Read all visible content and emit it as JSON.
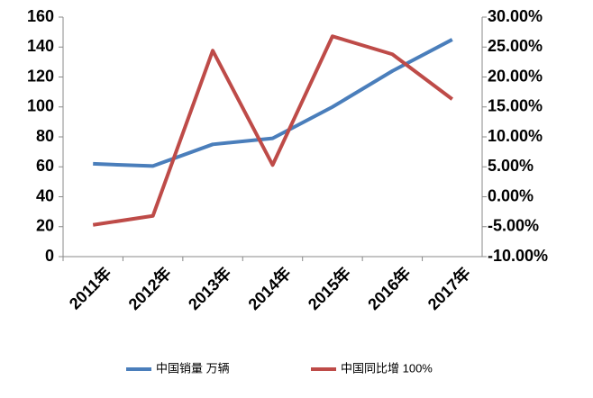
{
  "chart_data": {
    "type": "line",
    "categories": [
      "2011年",
      "2012年",
      "2013年",
      "2014年",
      "2015年",
      "2016年",
      "2017年"
    ],
    "series": [
      {
        "name": "中国销量 万辆",
        "color": "#4a7ebb",
        "values": [
          62,
          60.5,
          75,
          79,
          100,
          124,
          145
        ]
      },
      {
        "name": "中国同比增 100%",
        "color": "#be4b48",
        "axis": "y2",
        "values": [
          -4.7,
          -3.2,
          24.4,
          5.3,
          26.8,
          23.8,
          16.3
        ]
      }
    ],
    "ylim": [
      0,
      160
    ],
    "yticks": [
      0,
      20,
      40,
      60,
      80,
      100,
      120,
      140,
      160
    ],
    "y2lim": [
      -10,
      30
    ],
    "y2ticks": [
      {
        "value": -10,
        "label": "-10.00%"
      },
      {
        "value": -5,
        "label": "-5.00%"
      },
      {
        "value": 0,
        "label": "0.00%"
      },
      {
        "value": 5,
        "label": "5.00%"
      },
      {
        "value": 10,
        "label": "10.00%"
      },
      {
        "value": 15,
        "label": "15.00%"
      },
      {
        "value": 20,
        "label": "20.00%"
      },
      {
        "value": 25,
        "label": "25.00%"
      },
      {
        "value": 30,
        "label": "30.00%"
      }
    ],
    "grid": false,
    "legend": "bottom"
  }
}
